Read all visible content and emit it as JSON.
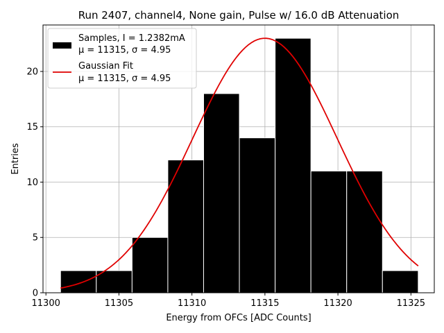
{
  "chart_data": {
    "type": "bar",
    "title": "Run 2407, channel4, None gain, Pulse w/ 16.0 dB Attenuation",
    "xlabel": "Energy from OFCs [ADC Counts]",
    "ylabel": "Entries",
    "xlim": [
      11299.8,
      11326.6
    ],
    "ylim": [
      0,
      24.2
    ],
    "xticks": [
      11300,
      11305,
      11310,
      11315,
      11320,
      11325
    ],
    "yticks": [
      0,
      5,
      10,
      15,
      20
    ],
    "grid": true,
    "legend_position": "upper left",
    "bin_edges": [
      11301.0,
      11303.45,
      11305.9,
      11308.35,
      11310.8,
      11313.25,
      11315.7,
      11318.15,
      11320.6,
      11323.05,
      11325.5
    ],
    "counts": [
      2,
      2,
      5,
      12,
      18,
      14,
      23,
      11,
      11,
      2
    ],
    "histogram_color": "#000000",
    "fit": {
      "type": "gaussian",
      "mu": 11315,
      "sigma": 4.95,
      "amplitude": 23,
      "x_range": [
        11301.0,
        11325.5
      ],
      "color": "#e00000"
    },
    "legend": [
      {
        "label_line1": "Samples, I = 1.2382mA",
        "label_line2": "μ = 11315, σ = 4.95",
        "marker": "patch"
      },
      {
        "label_line1": "Gaussian Fit",
        "label_line2": "μ = 11315, σ = 4.95",
        "marker": "line"
      }
    ]
  }
}
